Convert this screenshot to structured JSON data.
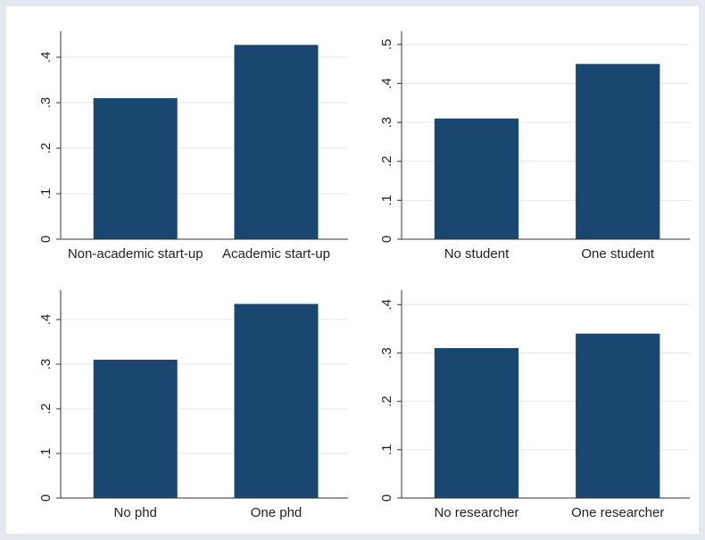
{
  "chart_data": [
    {
      "type": "bar",
      "categories": [
        "Non-academic start-up",
        "Academic start-up"
      ],
      "values": [
        0.31,
        0.427
      ],
      "color": "#1a476f",
      "ylim": [
        0,
        0.457
      ],
      "yticks": [
        0,
        {
          "value": 0.1,
          "label": ".1"
        },
        {
          "value": 0.2,
          "label": ".2"
        },
        {
          "value": 0.3,
          "label": ".3"
        },
        {
          "value": 0.4,
          "label": ".4"
        }
      ],
      "grid": true
    },
    {
      "type": "bar",
      "categories": [
        "No student",
        "One student"
      ],
      "values": [
        0.31,
        0.45
      ],
      "color": "#1a476f",
      "ylim": [
        0,
        0.534
      ],
      "yticks": [
        0,
        {
          "value": 0.1,
          "label": ".1"
        },
        {
          "value": 0.2,
          "label": ".2"
        },
        {
          "value": 0.3,
          "label": ".3"
        },
        {
          "value": 0.4,
          "label": ".4"
        },
        {
          "value": 0.5,
          "label": ".5"
        }
      ],
      "grid": true
    },
    {
      "type": "bar",
      "categories": [
        "No phd",
        "One phd"
      ],
      "values": [
        0.31,
        0.435
      ],
      "color": "#1a476f",
      "ylim": [
        0,
        0.466
      ],
      "yticks": [
        0,
        {
          "value": 0.1,
          "label": ".1"
        },
        {
          "value": 0.2,
          "label": ".2"
        },
        {
          "value": 0.3,
          "label": ".3"
        },
        {
          "value": 0.4,
          "label": ".4"
        }
      ],
      "grid": true
    },
    {
      "type": "bar",
      "categories": [
        "No researcher",
        "One researcher"
      ],
      "values": [
        0.31,
        0.34
      ],
      "color": "#1a476f",
      "ylim": [
        0,
        0.43
      ],
      "yticks": [
        0,
        {
          "value": 0.1,
          "label": ".1"
        },
        {
          "value": 0.2,
          "label": ".2"
        },
        {
          "value": 0.3,
          "label": ".3"
        },
        {
          "value": 0.4,
          "label": ".4"
        }
      ],
      "grid": true
    }
  ]
}
